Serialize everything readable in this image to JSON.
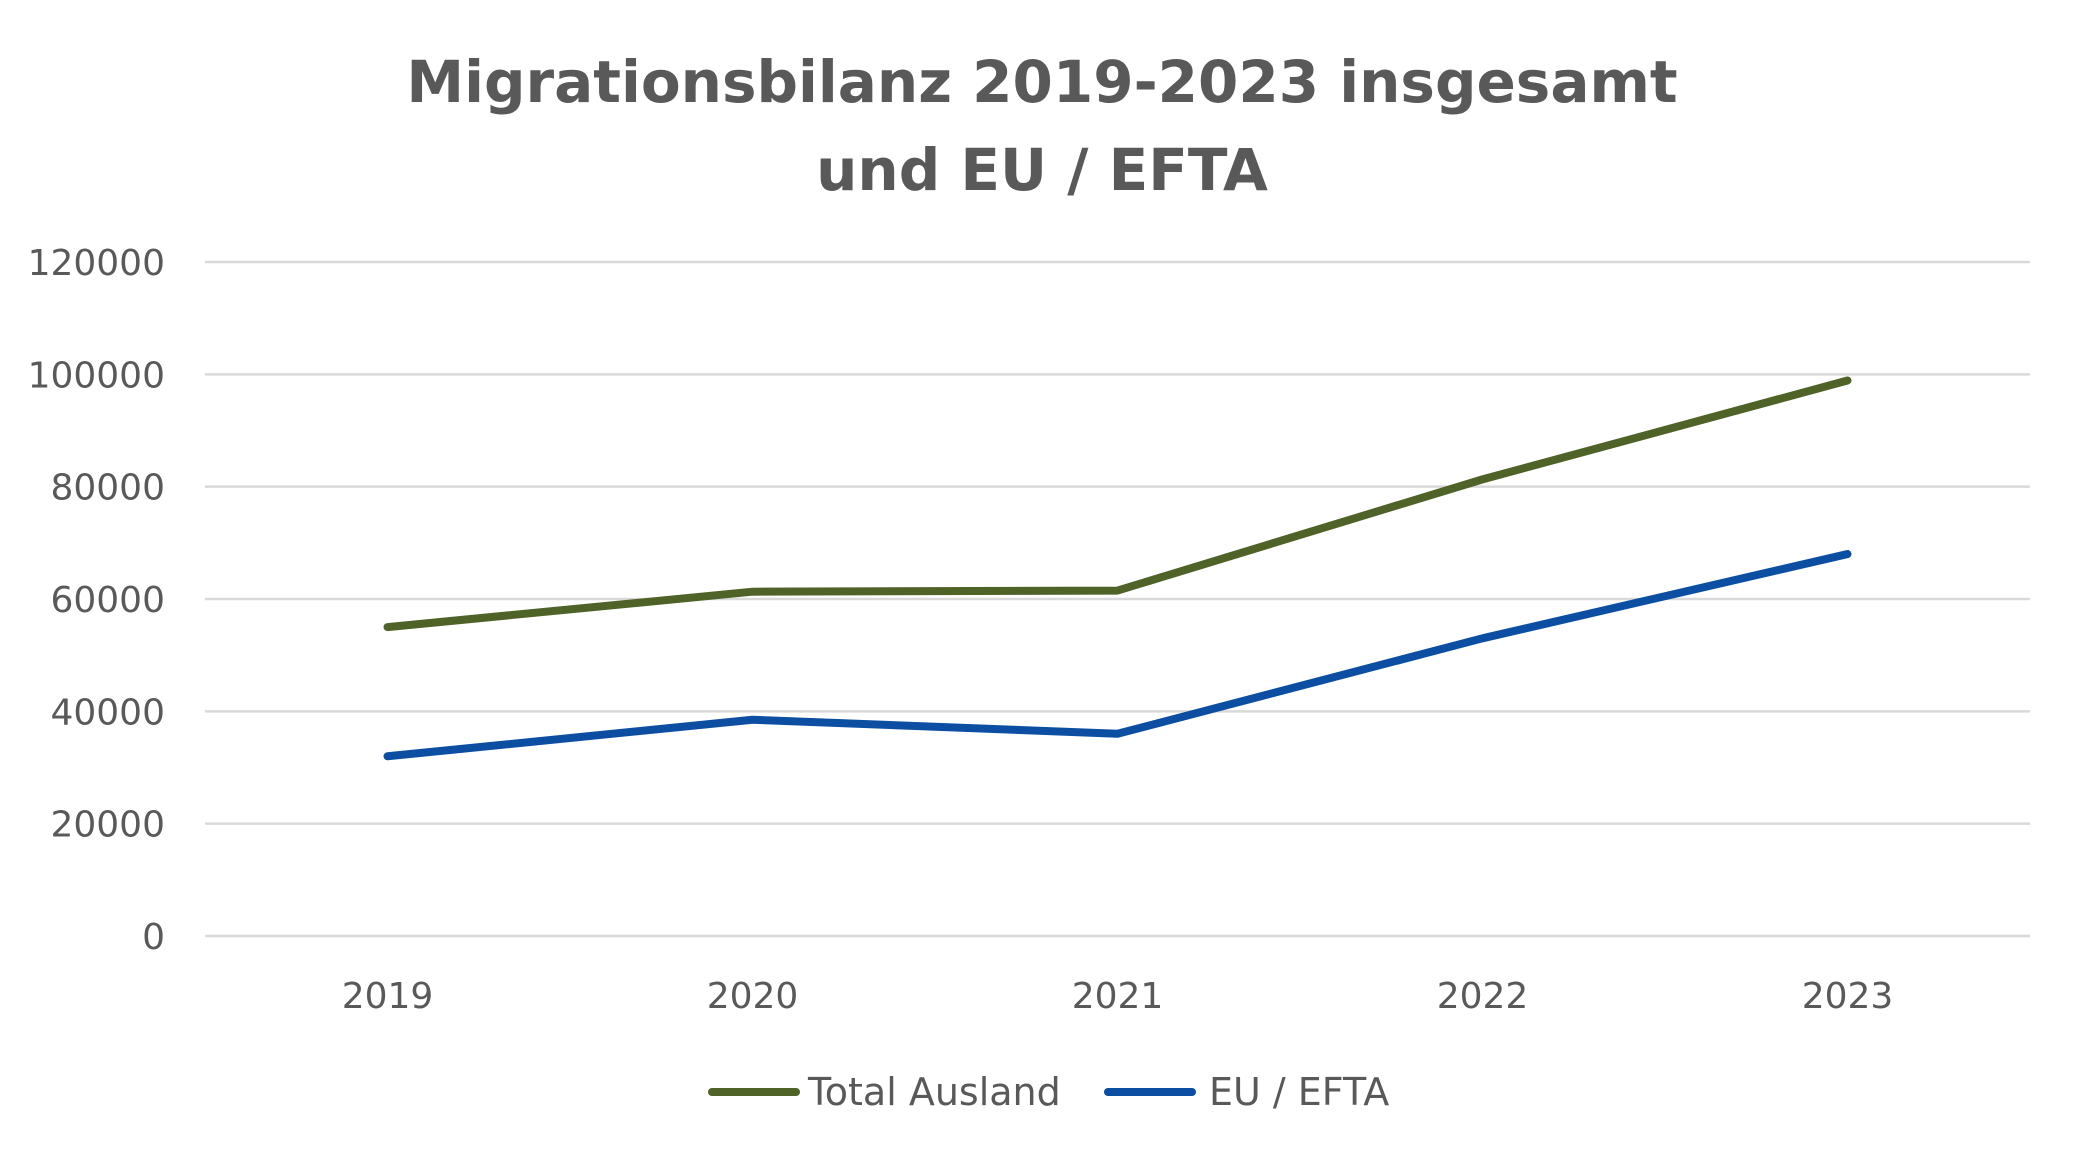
{
  "chart_data": {
    "type": "line",
    "title_lines": [
      "Migrationsbilanz 2019-2023 insgesamt",
      "und EU / EFTA"
    ],
    "categories": [
      "2019",
      "2020",
      "2021",
      "2022",
      "2023"
    ],
    "y_ticks": [
      "0",
      "20000",
      "40000",
      "60000",
      "80000",
      "100000",
      "120000"
    ],
    "ylim": [
      0,
      120000
    ],
    "grid": true,
    "legend_position": "bottom",
    "series": [
      {
        "name": "Total Ausland",
        "color": "#4f6228",
        "values": [
          55000,
          61300,
          61500,
          81300,
          98900
        ]
      },
      {
        "name": "EU / EFTA",
        "color": "#0b4ea2",
        "values": [
          32000,
          38500,
          36000,
          53000,
          68000
        ]
      }
    ]
  }
}
